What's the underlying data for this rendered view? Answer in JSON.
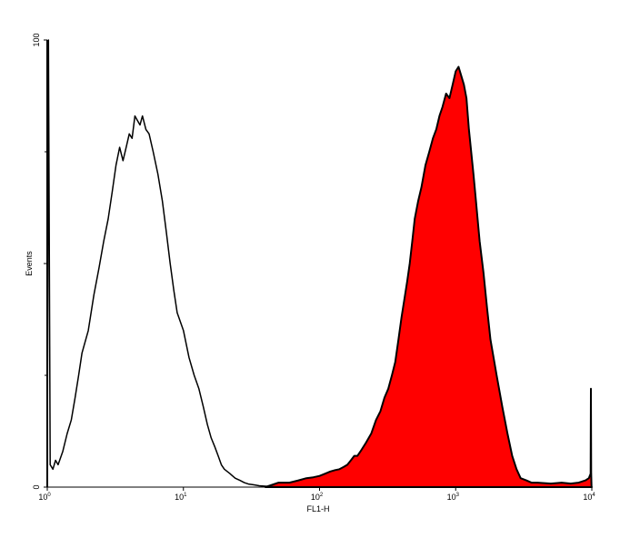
{
  "chart_data": {
    "type": "area",
    "title": "",
    "xlabel": "FL1-H",
    "ylabel": "Events",
    "x_scale": "log",
    "xlim": [
      1,
      10000
    ],
    "ylim": [
      0,
      100
    ],
    "x_ticks": [
      {
        "value": 1,
        "base": "10",
        "exp": "0"
      },
      {
        "value": 10,
        "base": "10",
        "exp": "1"
      },
      {
        "value": 100,
        "base": "10",
        "exp": "2"
      },
      {
        "value": 1000,
        "base": "10",
        "exp": "3"
      },
      {
        "value": 10000,
        "base": "10",
        "exp": "4"
      }
    ],
    "y_ticks": [
      {
        "value": 0,
        "label": "0"
      },
      {
        "value": 50,
        "label": ""
      },
      {
        "value": 100,
        "label": "100"
      }
    ],
    "grid": false,
    "series": [
      {
        "style": "outline",
        "color": "#000000",
        "x": [
          1,
          1.02,
          1.05,
          1.1,
          1.15,
          1.2,
          1.3,
          1.4,
          1.5,
          1.6,
          1.7,
          1.8,
          2.0,
          2.2,
          2.4,
          2.6,
          2.8,
          3.0,
          3.2,
          3.4,
          3.6,
          3.8,
          4.0,
          4.2,
          4.4,
          4.6,
          4.8,
          5.0,
          5.3,
          5.6,
          6.0,
          6.5,
          7.0,
          7.5,
          8.0,
          8.5,
          9.0,
          10,
          11,
          12,
          13,
          14,
          15,
          16,
          17,
          18,
          19,
          20,
          22,
          24,
          26,
          28,
          30,
          33,
          36,
          40,
          45,
          50,
          60,
          80,
          100,
          10000
        ],
        "y": [
          0,
          100,
          5,
          4,
          6,
          5,
          8,
          12,
          15,
          20,
          25,
          30,
          35,
          43,
          49,
          55,
          60,
          66,
          72,
          76,
          73,
          76,
          79,
          78,
          83,
          82,
          81,
          83,
          80,
          79,
          75,
          70,
          64,
          57,
          50,
          44,
          39,
          35,
          29,
          25,
          22,
          18,
          14,
          11,
          9,
          7,
          5,
          4,
          3,
          2,
          1.5,
          1,
          0.7,
          0.5,
          0.3,
          0.2,
          0.1,
          0.05,
          0,
          0,
          0,
          0
        ]
      },
      {
        "style": "filled",
        "color": "#ff0000",
        "x": [
          40,
          50,
          60,
          70,
          80,
          90,
          100,
          110,
          120,
          130,
          140,
          150,
          160,
          170,
          180,
          190,
          200,
          220,
          240,
          260,
          280,
          300,
          320,
          340,
          360,
          380,
          400,
          420,
          440,
          460,
          480,
          500,
          530,
          560,
          600,
          640,
          680,
          720,
          760,
          800,
          850,
          900,
          950,
          1000,
          1050,
          1100,
          1150,
          1200,
          1250,
          1300,
          1350,
          1400,
          1500,
          1600,
          1700,
          1800,
          2000,
          2200,
          2400,
          2600,
          2800,
          3000,
          3300,
          3600,
          4000,
          5000,
          6000,
          7000,
          8000,
          9000,
          9500,
          9800,
          9850,
          9900,
          9950,
          10000
        ],
        "y": [
          0,
          1,
          1,
          1.5,
          2,
          2.2,
          2.5,
          3,
          3.5,
          3.8,
          4,
          4.5,
          5,
          6,
          7,
          7,
          8,
          10,
          12,
          15,
          17,
          20,
          22,
          25,
          28,
          33,
          38,
          42,
          46,
          50,
          55,
          60,
          64,
          67,
          72,
          75,
          78,
          80,
          83,
          85,
          88,
          87,
          90,
          93,
          94,
          92,
          90,
          87,
          80,
          75,
          70,
          65,
          55,
          48,
          40,
          33,
          25,
          18,
          12,
          7,
          4,
          2,
          1.5,
          1,
          1,
          0.8,
          1,
          0.8,
          1,
          1.5,
          2,
          3,
          22,
          3,
          0,
          0
        ]
      }
    ]
  }
}
